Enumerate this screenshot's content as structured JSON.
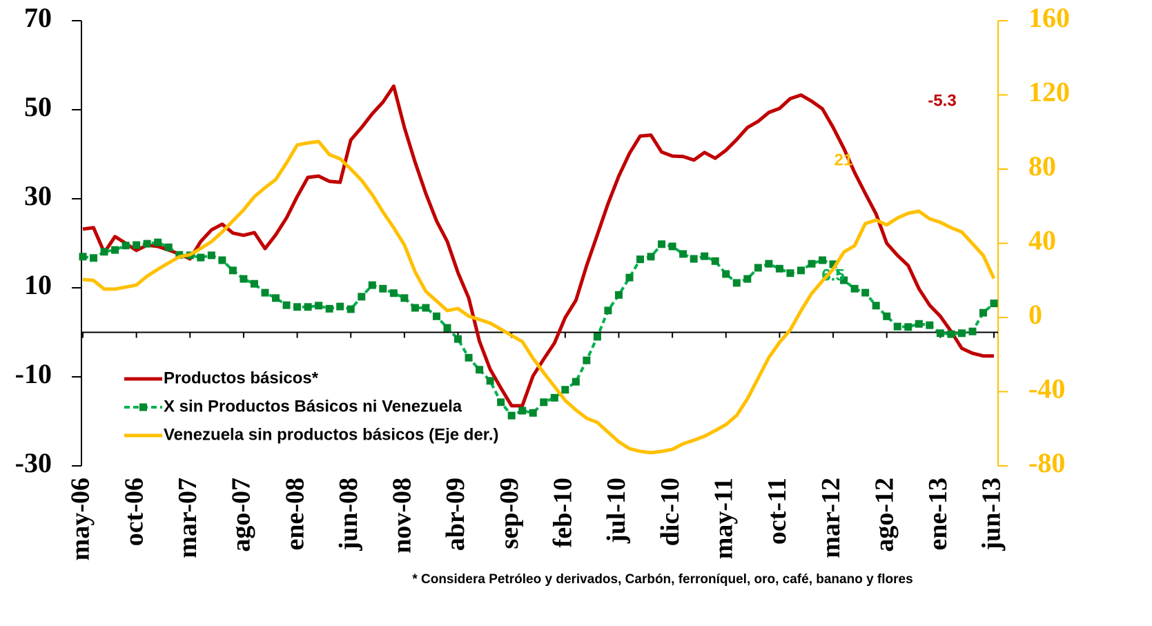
{
  "chart_data": {
    "type": "line",
    "categories": [
      "may-06",
      null,
      null,
      null,
      null,
      "oct-06",
      null,
      null,
      null,
      null,
      "mar-07",
      null,
      null,
      null,
      null,
      "ago-07",
      null,
      null,
      null,
      null,
      "ene-08",
      null,
      null,
      null,
      null,
      "jun-08",
      null,
      null,
      null,
      null,
      "nov-08",
      null,
      null,
      null,
      null,
      "abr-09",
      null,
      null,
      null,
      null,
      "sep-09",
      null,
      null,
      null,
      null,
      "feb-10",
      null,
      null,
      null,
      null,
      "jul-10",
      null,
      null,
      null,
      null,
      "dic-10",
      null,
      null,
      null,
      null,
      "may-11",
      null,
      null,
      null,
      null,
      "oct-11",
      null,
      null,
      null,
      null,
      "mar-12",
      null,
      null,
      null,
      null,
      "ago-12",
      null,
      null,
      null,
      null,
      "ene-13",
      null,
      null,
      null,
      null,
      "jun-13"
    ],
    "series": [
      {
        "name": "Productos básicos*",
        "color": "#C00000",
        "axis": "y",
        "values": [
          23.2,
          23.5,
          17.9,
          21.5,
          20,
          18.4,
          19.6,
          19.3,
          18.5,
          17.6,
          16.5,
          20.4,
          23,
          24.3,
          22.3,
          21.8,
          22.4,
          18.8,
          21.9,
          25.7,
          30.5,
          34.8,
          35.1,
          33.9,
          33.7,
          43.2,
          46,
          49.1,
          51.7,
          55.3,
          46,
          38.2,
          31.2,
          25,
          20.4,
          13.4,
          7.7,
          -2,
          -8.3,
          -12.5,
          -16.5,
          -16.5,
          -9.8,
          -6,
          -2.4,
          3.3,
          7.2,
          15,
          21.9,
          28.9,
          35.1,
          40.2,
          44.1,
          44.3,
          40.5,
          39.6,
          39.5,
          38.7,
          40.4,
          39.1,
          40.9,
          43.3,
          46,
          47.4,
          49.4,
          50.3,
          52.5,
          53.3,
          51.9,
          50.2,
          46,
          41.3,
          35.9,
          31.2,
          26.6,
          20,
          17.3,
          15,
          9.8,
          6.1,
          3.6,
          0.2,
          -3.6,
          -4.7,
          -5.3,
          -5.3
        ]
      },
      {
        "name": "X sin Productos Básicos ni Venezuela",
        "color": "#00B050",
        "marker": "square",
        "marker_color": "#00892F",
        "linestyle": "dashed",
        "axis": "y",
        "values": [
          17,
          16.7,
          18.1,
          18.5,
          19.5,
          19.6,
          19.9,
          20.2,
          19.1,
          17.4,
          17.3,
          16.8,
          17.3,
          16.2,
          13.9,
          12,
          10.9,
          8.9,
          7.7,
          6.1,
          5.7,
          5.7,
          6,
          5.3,
          5.8,
          5.2,
          8,
          10.6,
          9.8,
          8.8,
          7.7,
          5.5,
          5.5,
          3.6,
          1,
          -1.5,
          -5.7,
          -8.4,
          -10.9,
          -15.7,
          -18.7,
          -17.6,
          -18.1,
          -15.7,
          -14.7,
          -12.9,
          -11.1,
          -6.3,
          -1,
          4.9,
          8.4,
          12.3,
          16.4,
          17,
          19.8,
          19.3,
          17.6,
          16.5,
          17.1,
          16,
          13.1,
          11.1,
          12,
          14.5,
          15.4,
          14.3,
          13.3,
          13.9,
          15.4,
          16.2,
          15.3,
          11.7,
          9.8,
          8.9,
          6,
          3.6,
          1.3,
          1.2,
          1.9,
          1.6,
          -0.2,
          -0.4,
          -0.2,
          0.2,
          4.4,
          6.5
        ]
      },
      {
        "name": "Venezuela sin productos básicos  (Eje der.)",
        "color": "#FFC000",
        "axis": "y2",
        "values": [
          20.5,
          20,
          15.3,
          15.3,
          16.4,
          17.5,
          22.3,
          26,
          29.4,
          32.7,
          33.9,
          37.2,
          40.9,
          46.1,
          52.1,
          58,
          65.1,
          70,
          74.4,
          83.3,
          93,
          94.1,
          94.9,
          87.8,
          85.6,
          80,
          74,
          66.2,
          56.9,
          48.4,
          39.1,
          24.6,
          14.1,
          8.9,
          3.7,
          4.8,
          0.7,
          -1.1,
          -3,
          -6.3,
          -9.7,
          -13,
          -22,
          -29.8,
          -37.2,
          -44.7,
          -49.9,
          -54.3,
          -56.6,
          -61.8,
          -67,
          -70.7,
          -72.2,
          -72.9,
          -72.2,
          -71.1,
          -68.1,
          -66.2,
          -64,
          -61,
          -57.7,
          -52.8,
          -43.9,
          -32.7,
          -21.6,
          -13.4,
          -6.7,
          3.7,
          13,
          19.7,
          26,
          35.3,
          38.7,
          50.6,
          52.5,
          49.9,
          53.6,
          56.2,
          57.3,
          53.2,
          51.3,
          48.4,
          46.1,
          39.8,
          33.5,
          21
        ]
      }
    ],
    "ylim": [
      -30,
      70
    ],
    "yticks": [
      -30,
      -10,
      10,
      30,
      50,
      70
    ],
    "y2lim": [
      -80,
      160
    ],
    "y2ticks": [
      -80,
      -40,
      0,
      40,
      80,
      120,
      160
    ],
    "y2_color": "#FFC000",
    "legend": "lower left",
    "footnote": "* Considera Petróleo y derivados, Carbón, ferroníquel, oro, café, banano y flores"
  }
}
